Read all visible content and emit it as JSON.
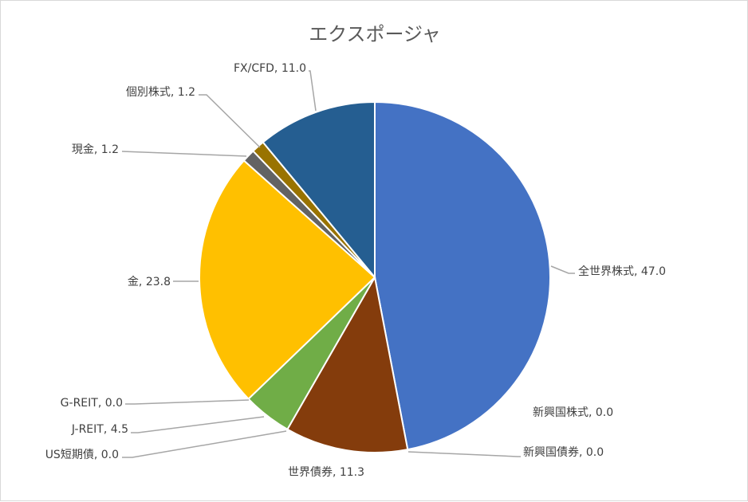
{
  "chart_data": {
    "type": "pie",
    "title": "エクスポージャ",
    "start_angle": "12 o'clock, clockwise",
    "categories": [
      "全世界株式",
      "新興国株式",
      "新興国債券",
      "世界債券",
      "US短期債",
      "J-REIT",
      "G-REIT",
      "金",
      "現金",
      "個別株式",
      "FX/CFD"
    ],
    "values": [
      47.0,
      0.0,
      0.0,
      11.3,
      0.0,
      4.5,
      0.0,
      23.8,
      1.2,
      1.2,
      11.0
    ],
    "value_labels": [
      "47.0",
      "0.0",
      "0.0",
      "11.3",
      "0.0",
      "4.5",
      "0.0",
      "23.8",
      "1.2",
      "1.2",
      "11.0"
    ],
    "colors": [
      "#4472C4",
      "#ED7D31",
      "#A5A5A5",
      "#843C0C",
      "#5B9BD5",
      "#70AD47",
      "#264478",
      "#FFC000",
      "#636363",
      "#997300",
      "#255E91"
    ],
    "data_labels": "category, value",
    "legend": "none"
  }
}
